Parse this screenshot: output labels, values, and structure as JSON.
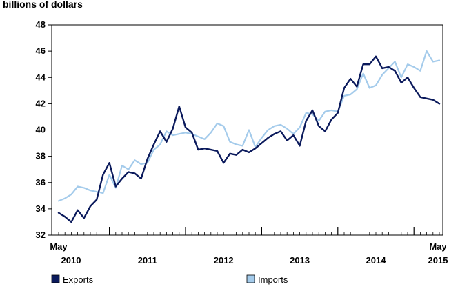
{
  "chart_data": {
    "type": "line",
    "ylabel": "billions of dollars",
    "ylim": [
      32,
      48
    ],
    "yticks": [
      "32",
      "34",
      "36",
      "38",
      "40",
      "42",
      "44",
      "46",
      "48"
    ],
    "start_label": {
      "month": "May",
      "year": "2010"
    },
    "end_label": {
      "month": "May",
      "year": "2015"
    },
    "year_labels": [
      "2011",
      "2012",
      "2013",
      "2014"
    ],
    "x": [
      "2010-05",
      "2010-06",
      "2010-07",
      "2010-08",
      "2010-09",
      "2010-10",
      "2010-11",
      "2010-12",
      "2011-01",
      "2011-02",
      "2011-03",
      "2011-04",
      "2011-05",
      "2011-06",
      "2011-07",
      "2011-08",
      "2011-09",
      "2011-10",
      "2011-11",
      "2011-12",
      "2012-01",
      "2012-02",
      "2012-03",
      "2012-04",
      "2012-05",
      "2012-06",
      "2012-07",
      "2012-08",
      "2012-09",
      "2012-10",
      "2012-11",
      "2012-12",
      "2013-01",
      "2013-02",
      "2013-03",
      "2013-04",
      "2013-05",
      "2013-06",
      "2013-07",
      "2013-08",
      "2013-09",
      "2013-10",
      "2013-11",
      "2013-12",
      "2014-01",
      "2014-02",
      "2014-03",
      "2014-04",
      "2014-05",
      "2014-06",
      "2014-07",
      "2014-08",
      "2014-09",
      "2014-10",
      "2014-11",
      "2014-12",
      "2015-01",
      "2015-02",
      "2015-03",
      "2015-04",
      "2015-05"
    ],
    "series": [
      {
        "name": "Exports",
        "color": "#0b1a5c",
        "values": [
          33.7,
          33.4,
          33.0,
          33.9,
          33.3,
          34.2,
          34.7,
          36.6,
          37.5,
          35.7,
          36.3,
          36.8,
          36.7,
          36.3,
          37.8,
          38.9,
          39.9,
          39.1,
          40.1,
          41.8,
          40.2,
          39.8,
          38.5,
          38.6,
          38.5,
          38.4,
          37.5,
          38.2,
          38.1,
          38.5,
          38.3,
          38.6,
          39.0,
          39.4,
          39.7,
          39.9,
          39.2,
          39.6,
          38.8,
          40.7,
          41.5,
          40.3,
          39.9,
          40.8,
          41.3,
          43.2,
          43.9,
          43.3,
          45.0,
          45.0,
          45.6,
          44.7,
          44.8,
          44.5,
          43.6,
          44.0,
          43.2,
          42.5,
          42.4,
          42.3,
          42.0
        ]
      },
      {
        "name": "Imports",
        "color": "#a4cbeb",
        "values": [
          34.6,
          34.8,
          35.1,
          35.7,
          35.6,
          35.4,
          35.3,
          35.2,
          36.6,
          35.6,
          37.3,
          37.0,
          37.7,
          37.4,
          37.5,
          38.5,
          38.9,
          39.9,
          39.6,
          39.7,
          39.8,
          39.7,
          39.5,
          39.3,
          39.8,
          40.5,
          40.3,
          39.1,
          38.9,
          38.8,
          40.0,
          38.7,
          39.4,
          40.0,
          40.3,
          40.4,
          40.1,
          39.7,
          40.2,
          41.3,
          41.2,
          40.7,
          41.4,
          41.5,
          41.4,
          42.6,
          42.7,
          43.1,
          44.3,
          43.2,
          43.4,
          44.2,
          44.7,
          45.2,
          44.0,
          45.0,
          44.8,
          44.5,
          46.0,
          45.2,
          45.3
        ]
      }
    ],
    "grid": false,
    "legend_position": "bottom"
  }
}
